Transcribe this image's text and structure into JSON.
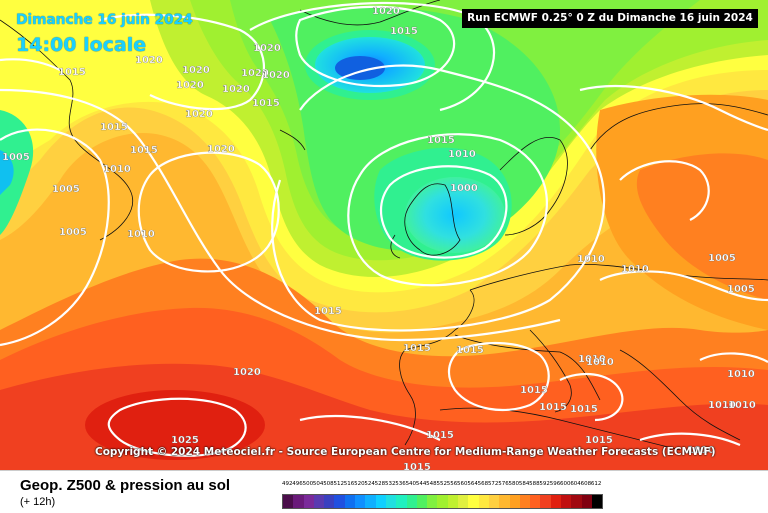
{
  "header": {
    "date": "Dimanche 16 juin 2024",
    "time": "14:00 locale",
    "run": "Run ECMWF 0.25° 0 Z du Dimanche 16 juin 2024"
  },
  "copyright": "Copyright © 2024 Meteociel.fr - Source European Centre for Medium-Range Weather Forecasts (ECMWF)",
  "footer": {
    "title": "Geop. Z500 & pression au sol",
    "subtitle": "(+ 12h)"
  },
  "scale": {
    "labels": [
      "492",
      "496",
      "500",
      "504",
      "508",
      "512",
      "516",
      "520",
      "524",
      "528",
      "532",
      "536",
      "540",
      "544",
      "548",
      "552",
      "556",
      "560",
      "564",
      "568",
      "572",
      "576",
      "580",
      "584",
      "588",
      "592",
      "596",
      "600",
      "604",
      "608",
      "612"
    ],
    "colors": [
      "#4b0e4b",
      "#6a1a7a",
      "#7a2a9a",
      "#5a3ab0",
      "#3a40c0",
      "#2050e0",
      "#1070f0",
      "#1090ff",
      "#10b0ff",
      "#10d0ff",
      "#20e0e0",
      "#20f0c0",
      "#30f090",
      "#50f060",
      "#80f040",
      "#a0f030",
      "#c0f030",
      "#e0f040",
      "#ffff40",
      "#ffe840",
      "#ffd040",
      "#ffb830",
      "#ffa020",
      "#ff8020",
      "#ff6020",
      "#f04020",
      "#e02010",
      "#c01010",
      "#a00810",
      "#800010",
      "#000000"
    ]
  },
  "isobars": [
    {
      "text": "1020"
    },
    {
      "text": "1015"
    },
    {
      "text": "1020"
    },
    {
      "text": "1020"
    },
    {
      "text": "1015"
    },
    {
      "text": "1020"
    },
    {
      "text": "1020"
    },
    {
      "text": "1020"
    },
    {
      "text": "1020"
    },
    {
      "text": "1020"
    },
    {
      "text": "1015"
    },
    {
      "text": "1020"
    },
    {
      "text": "1015"
    },
    {
      "text": "1020"
    },
    {
      "text": "1005"
    },
    {
      "text": "1015"
    },
    {
      "text": "1010"
    },
    {
      "text": "1005"
    },
    {
      "text": "1015"
    },
    {
      "text": "1010"
    },
    {
      "text": "1005"
    },
    {
      "text": "1000"
    },
    {
      "text": "1010"
    },
    {
      "text": "1010"
    },
    {
      "text": "1010"
    },
    {
      "text": "1005"
    },
    {
      "text": "1005"
    },
    {
      "text": "1015"
    },
    {
      "text": "1015"
    },
    {
      "text": "1015"
    },
    {
      "text": "1010"
    },
    {
      "text": "1010"
    },
    {
      "text": "1020"
    },
    {
      "text": "1015"
    },
    {
      "text": "1015"
    },
    {
      "text": "1015"
    },
    {
      "text": "1010"
    },
    {
      "text": "1010"
    },
    {
      "text": "1010"
    },
    {
      "text": "1025"
    },
    {
      "text": "1015"
    },
    {
      "text": "1015"
    },
    {
      "text": "1010"
    },
    {
      "text": "1015"
    }
  ]
}
